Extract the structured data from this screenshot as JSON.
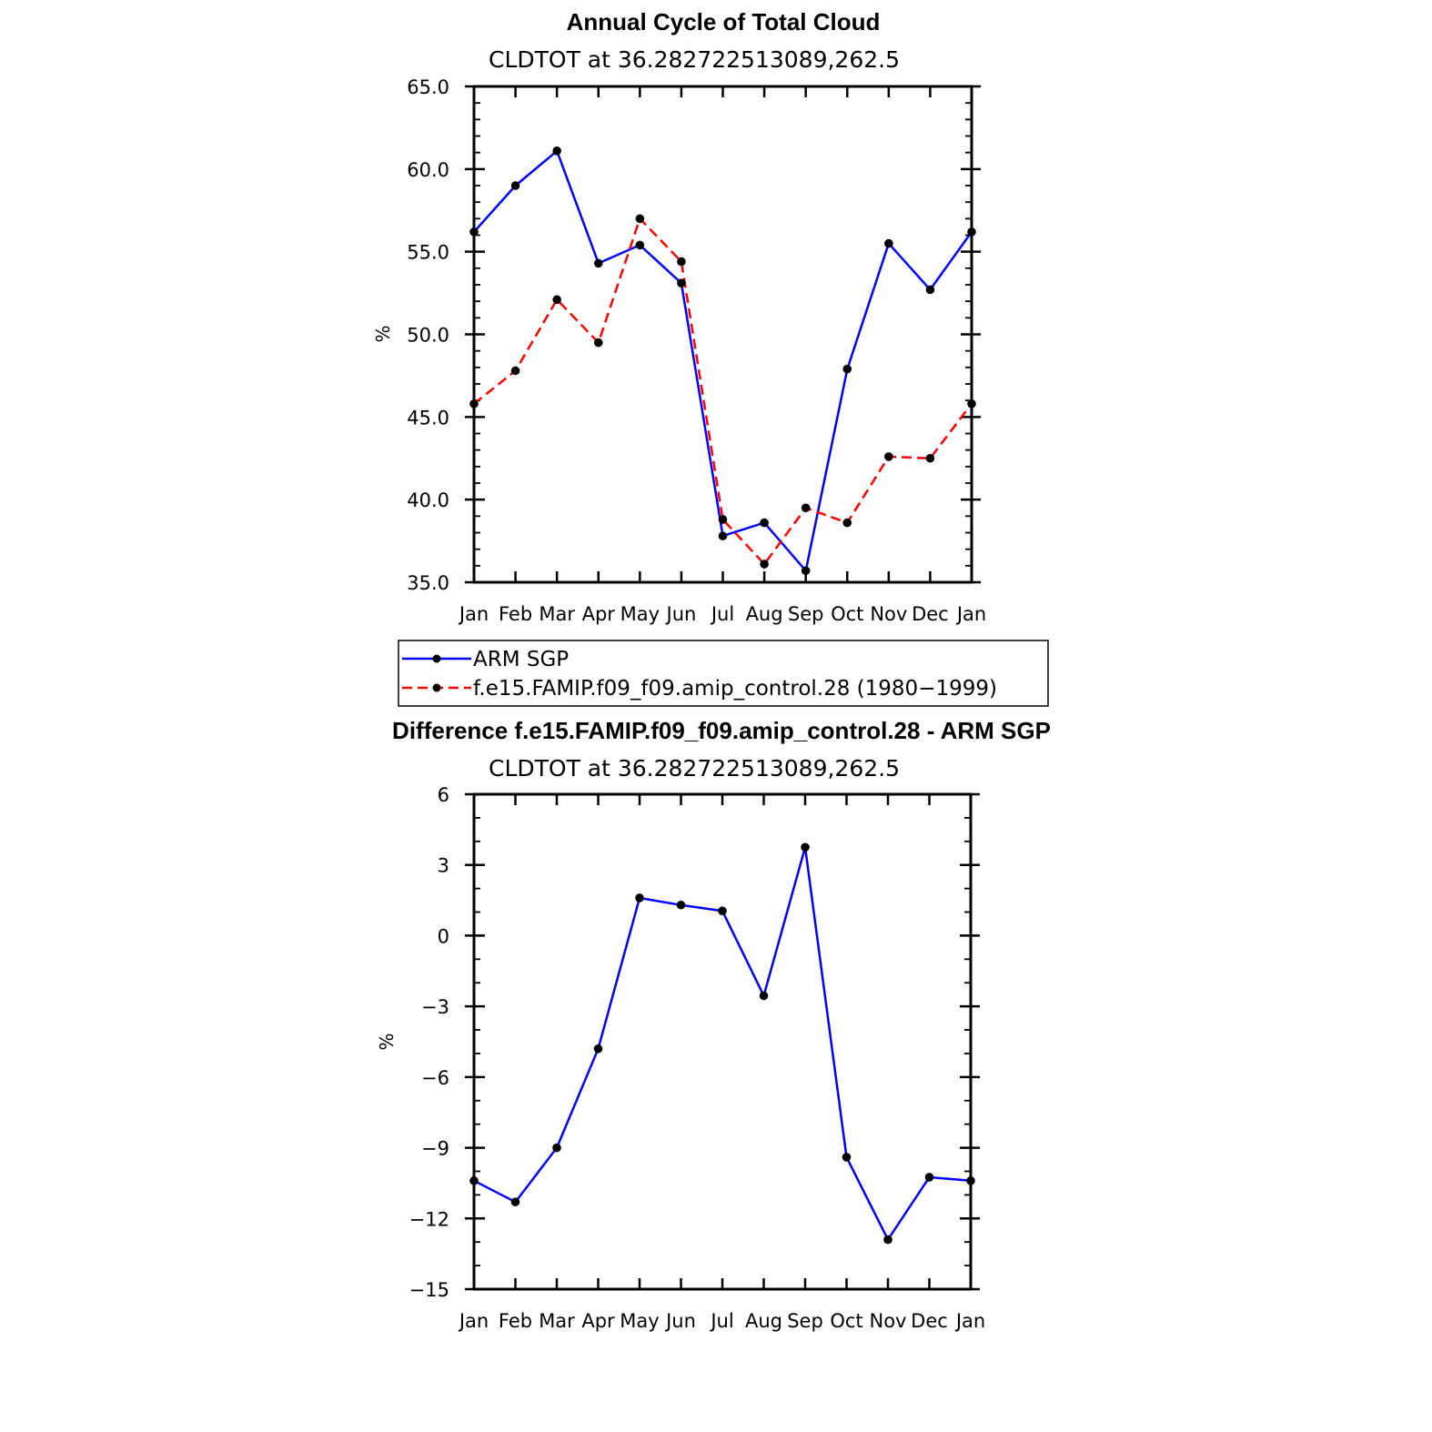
{
  "chart_data": [
    {
      "type": "line",
      "title": "Annual Cycle of Total Cloud",
      "subtitle": "CLDTOT at 36.282722513089,262.5",
      "ylabel": "%",
      "xlabel": "",
      "categories": [
        "Jan",
        "Feb",
        "Mar",
        "Apr",
        "May",
        "Jun",
        "Jul",
        "Aug",
        "Sep",
        "Oct",
        "Nov",
        "Dec",
        "Jan"
      ],
      "ylim": [
        35.0,
        65.0
      ],
      "yticks": [
        "35.0",
        "40.0",
        "45.0",
        "50.0",
        "55.0",
        "60.0",
        "65.0"
      ],
      "series": [
        {
          "name": "ARM SGP",
          "color": "#0000ff",
          "dash": "solid",
          "values": [
            56.2,
            59.0,
            61.1,
            54.3,
            55.4,
            53.1,
            37.8,
            38.6,
            35.7,
            47.9,
            55.5,
            52.7,
            56.2
          ]
        },
        {
          "name": "f.e15.FAMIP.f09_f09.amip_control.28 (1980−1999)",
          "color": "#ff0000",
          "dash": "dashed",
          "values": [
            45.8,
            47.8,
            52.1,
            49.5,
            57.0,
            54.4,
            38.8,
            36.1,
            39.5,
            38.6,
            42.6,
            42.5,
            45.8
          ]
        }
      ],
      "marker_color": "#000000",
      "legend_position": "below"
    },
    {
      "type": "line",
      "title": "Difference f.e15.FAMIP.f09_f09.amip_control.28 - ARM SGP",
      "subtitle": "CLDTOT at 36.282722513089,262.5",
      "ylabel": "%",
      "xlabel": "",
      "categories": [
        "Jan",
        "Feb",
        "Mar",
        "Apr",
        "May",
        "Jun",
        "Jul",
        "Aug",
        "Sep",
        "Oct",
        "Nov",
        "Dec",
        "Jan"
      ],
      "ylim": [
        -15,
        6
      ],
      "yticks": [
        "−15",
        "−12",
        "−9",
        "−6",
        "−3",
        "0",
        "3",
        "6"
      ],
      "series": [
        {
          "color": "#0000ff",
          "dash": "solid",
          "values": [
            -10.4,
            -11.3,
            -9.0,
            -4.8,
            1.6,
            1.3,
            1.05,
            -2.55,
            3.75,
            -9.4,
            -12.9,
            -10.25,
            -10.4
          ]
        }
      ],
      "marker_color": "#000000"
    }
  ]
}
